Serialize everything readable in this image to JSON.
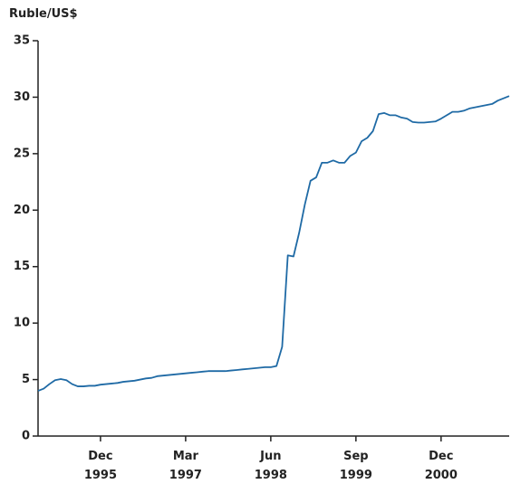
{
  "chart_data": {
    "type": "line",
    "y_label": "Ruble/US$",
    "categories": [
      null,
      null,
      null,
      null,
      null,
      null,
      null,
      null,
      null,
      null,
      null,
      "Dec 1995",
      null,
      null,
      null,
      null,
      null,
      null,
      null,
      null,
      null,
      null,
      null,
      null,
      null,
      null,
      "Mar 1997",
      null,
      null,
      null,
      null,
      null,
      null,
      null,
      null,
      null,
      null,
      null,
      null,
      null,
      null,
      "Jun 1998",
      null,
      null,
      null,
      null,
      null,
      null,
      null,
      null,
      null,
      null,
      null,
      null,
      null,
      null,
      "Sep 1999",
      null,
      null,
      null,
      null,
      null,
      null,
      null,
      null,
      null,
      null,
      null,
      null,
      null,
      null,
      "Dec 2000",
      null,
      null,
      null,
      null,
      null,
      null,
      null,
      null,
      null,
      null,
      null,
      null
    ],
    "series": [
      {
        "name": "Ruble/US$",
        "color": "#1f6aa5",
        "values": [
          4.0,
          4.2,
          4.6,
          4.95,
          5.05,
          4.95,
          4.6,
          4.4,
          4.4,
          4.45,
          4.45,
          4.55,
          4.6,
          4.65,
          4.7,
          4.8,
          4.85,
          4.9,
          5.0,
          5.1,
          5.15,
          5.3,
          5.35,
          5.4,
          5.45,
          5.5,
          5.55,
          5.6,
          5.65,
          5.7,
          5.75,
          5.75,
          5.75,
          5.75,
          5.8,
          5.85,
          5.9,
          5.95,
          6.0,
          6.05,
          6.1,
          6.1,
          6.2,
          7.9,
          16.0,
          15.9,
          18.0,
          20.5,
          22.6,
          22.9,
          24.2,
          24.2,
          24.4,
          24.2,
          24.2,
          24.8,
          25.1,
          26.1,
          26.4,
          27.0,
          28.5,
          28.6,
          28.4,
          28.4,
          28.2,
          28.1,
          27.8,
          27.75,
          27.75,
          27.8,
          27.85,
          28.1,
          28.4,
          28.7,
          28.7,
          28.8,
          29.0,
          29.1,
          29.2,
          29.3,
          29.4,
          29.7,
          29.9,
          30.1
        ]
      }
    ],
    "ylim": [
      0,
      35
    ],
    "yticks": [
      0,
      5,
      10,
      15,
      20,
      25,
      30,
      35
    ],
    "grid": false
  }
}
